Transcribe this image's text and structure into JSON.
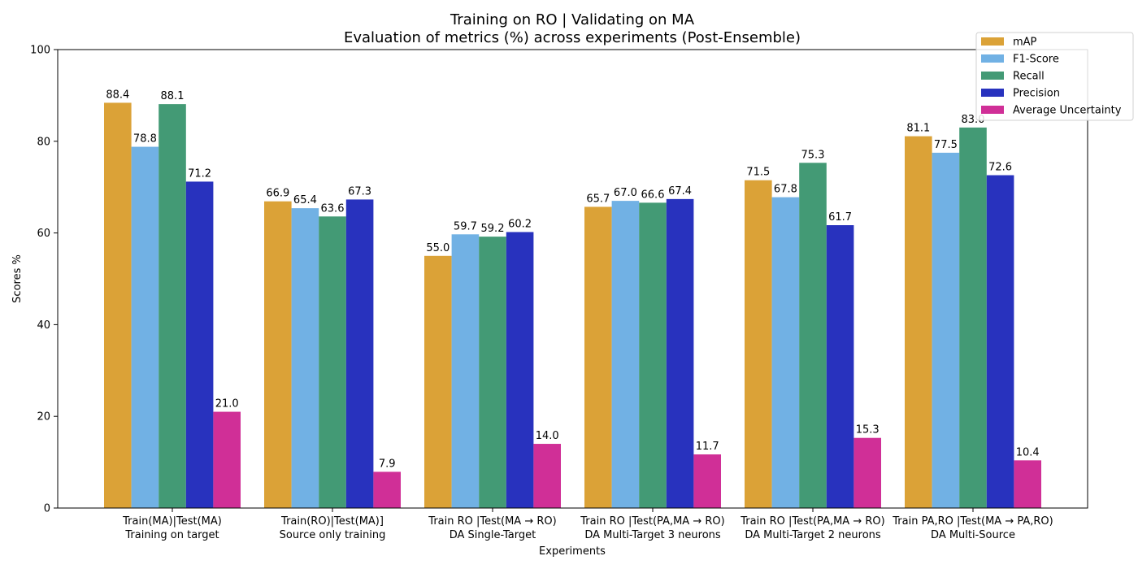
{
  "chart_data": {
    "type": "bar",
    "title": "Training on RO | Validating on MA",
    "subtitle": "Evaluation of metrics (%) across experiments (Post-Ensemble)",
    "xlabel": "Experiments",
    "ylabel": "Scores %",
    "ylim": [
      0,
      100
    ],
    "yticks": [
      0,
      20,
      40,
      60,
      80,
      100
    ],
    "grid": false,
    "legend_position": "top-right",
    "categories": [
      "Train(MA)|Test(MA)\nTraining on target",
      "Train(RO)|Test(MA)]\nSource only training",
      "Train RO |Test(MA → RO)\nDA Single-Target",
      "Train RO |Test(PA,MA → RO)\nDA Multi-Target 3 neurons",
      "Train RO |Test(PA,MA → RO)\nDA Multi-Target 2 neurons",
      "Train PA,RO |Test(MA → PA,RO)\nDA Multi-Source"
    ],
    "series": [
      {
        "name": "mAP",
        "color": "#dba237",
        "values": [
          88.4,
          66.9,
          55.0,
          65.7,
          71.5,
          81.1
        ]
      },
      {
        "name": "F1-Score",
        "color": "#71b1e4",
        "values": [
          78.8,
          65.4,
          59.7,
          67.0,
          67.8,
          77.5
        ]
      },
      {
        "name": "Recall",
        "color": "#439a75",
        "values": [
          88.1,
          63.6,
          59.2,
          66.6,
          75.3,
          83.0
        ]
      },
      {
        "name": "Precision",
        "color": "#2832be",
        "values": [
          71.2,
          67.3,
          60.2,
          67.4,
          61.7,
          72.6
        ]
      },
      {
        "name": "Average Uncertainty",
        "color": "#d02f97",
        "values": [
          21.0,
          7.9,
          14.0,
          11.7,
          15.3,
          10.4
        ]
      }
    ]
  }
}
